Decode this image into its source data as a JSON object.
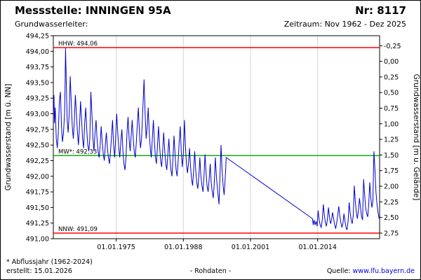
{
  "header": {
    "station": "Messstelle: INNINGEN 95A",
    "number": "Nr: 8117",
    "aquifer_label": "Grundwasserleiter:",
    "period": "Zeitraum: Nov 1962 - Dez 2025"
  },
  "footer": {
    "note": "* Abflussjahr (1962-2024)",
    "created": "erstellt: 15.01.2026",
    "center": "- Rohdaten -",
    "source_label": "Quelle:",
    "source_url": "www.lfu.bayern.de"
  },
  "chart_data": {
    "type": "line",
    "ylabel_left": "Grundwasserstand [m ü. NN]",
    "ylabel_right": "Grundwasserstand [m u. Gelände]",
    "xlim": [
      1962.83,
      2026.0
    ],
    "ylim": [
      491.0,
      494.25
    ],
    "y_tick_step": 0.25,
    "grid": "vertical-only",
    "right_axis": {
      "ground_level_m_nn": 493.84,
      "tick_min": -0.25,
      "tick_max": 2.75,
      "tick_step": 0.25
    },
    "x_ticks": [
      {
        "x": 1975.0,
        "label": "01.01.1975"
      },
      {
        "x": 1988.0,
        "label": "01.01.1988"
      },
      {
        "x": 2001.0,
        "label": "01.01.2001"
      },
      {
        "x": 2014.0,
        "label": "01.01.2014"
      }
    ],
    "reference_lines": [
      {
        "name": "HHW",
        "value": 494.06,
        "label": "HHW: 494,06",
        "color": "#ff0000"
      },
      {
        "name": "MW",
        "value": 492.33,
        "label": "MW*: 492,33",
        "color": "#00aa00"
      },
      {
        "name": "NNW",
        "value": 491.09,
        "label": "NNW: 491,09",
        "color": "#ff0000"
      }
    ],
    "series": [
      {
        "name": "Grundwasserstand Rohdaten",
        "color": "#0000cc",
        "points": [
          [
            1962.85,
            493.05
          ],
          [
            1962.95,
            493.3
          ],
          [
            1963.05,
            492.85
          ],
          [
            1963.2,
            493.1
          ],
          [
            1963.4,
            492.6
          ],
          [
            1963.6,
            492.45
          ],
          [
            1963.8,
            492.7
          ],
          [
            1964.0,
            493.2
          ],
          [
            1964.2,
            493.35
          ],
          [
            1964.4,
            492.8
          ],
          [
            1964.6,
            492.55
          ],
          [
            1964.8,
            492.7
          ],
          [
            1965.0,
            493.0
          ],
          [
            1965.1,
            493.4
          ],
          [
            1965.2,
            494.05
          ],
          [
            1965.35,
            493.5
          ],
          [
            1965.5,
            492.9
          ],
          [
            1965.7,
            492.7
          ],
          [
            1965.9,
            493.0
          ],
          [
            1966.1,
            493.6
          ],
          [
            1966.3,
            493.2
          ],
          [
            1966.5,
            492.8
          ],
          [
            1966.7,
            492.6
          ],
          [
            1966.9,
            492.9
          ],
          [
            1967.1,
            493.3
          ],
          [
            1967.3,
            493.0
          ],
          [
            1967.5,
            492.7
          ],
          [
            1967.7,
            492.5
          ],
          [
            1967.9,
            492.8
          ],
          [
            1968.1,
            493.2
          ],
          [
            1968.3,
            492.9
          ],
          [
            1968.5,
            492.6
          ],
          [
            1968.7,
            492.45
          ],
          [
            1968.9,
            492.85
          ],
          [
            1969.1,
            493.1
          ],
          [
            1969.3,
            492.75
          ],
          [
            1969.5,
            492.5
          ],
          [
            1969.7,
            492.4
          ],
          [
            1969.9,
            492.6
          ],
          [
            1970.1,
            493.35
          ],
          [
            1970.3,
            493.0
          ],
          [
            1970.5,
            492.6
          ],
          [
            1970.7,
            492.4
          ],
          [
            1970.9,
            492.7
          ],
          [
            1971.1,
            492.9
          ],
          [
            1971.3,
            492.6
          ],
          [
            1971.5,
            492.4
          ],
          [
            1971.7,
            492.3
          ],
          [
            1971.9,
            492.5
          ],
          [
            1972.1,
            492.8
          ],
          [
            1972.3,
            492.55
          ],
          [
            1972.5,
            492.35
          ],
          [
            1972.7,
            492.25
          ],
          [
            1972.9,
            492.5
          ],
          [
            1973.1,
            492.7
          ],
          [
            1973.3,
            492.45
          ],
          [
            1973.5,
            492.3
          ],
          [
            1973.7,
            492.2
          ],
          [
            1973.9,
            492.4
          ],
          [
            1974.1,
            492.65
          ],
          [
            1974.3,
            492.9
          ],
          [
            1974.5,
            492.5
          ],
          [
            1974.7,
            492.3
          ],
          [
            1974.9,
            492.6
          ],
          [
            1975.1,
            493.0
          ],
          [
            1975.3,
            492.7
          ],
          [
            1975.5,
            492.45
          ],
          [
            1975.7,
            492.3
          ],
          [
            1975.9,
            492.55
          ],
          [
            1976.1,
            492.75
          ],
          [
            1976.3,
            492.4
          ],
          [
            1976.5,
            492.2
          ],
          [
            1976.7,
            492.1
          ],
          [
            1976.9,
            492.3
          ],
          [
            1977.1,
            492.7
          ],
          [
            1977.3,
            492.95
          ],
          [
            1977.5,
            492.6
          ],
          [
            1977.7,
            492.4
          ],
          [
            1977.9,
            492.65
          ],
          [
            1978.1,
            492.9
          ],
          [
            1978.3,
            492.6
          ],
          [
            1978.5,
            492.4
          ],
          [
            1978.7,
            492.3
          ],
          [
            1978.9,
            492.55
          ],
          [
            1979.1,
            492.85
          ],
          [
            1979.3,
            493.1
          ],
          [
            1979.5,
            492.7
          ],
          [
            1979.7,
            492.45
          ],
          [
            1979.9,
            492.6
          ],
          [
            1980.1,
            492.95
          ],
          [
            1980.4,
            493.55
          ],
          [
            1980.6,
            493.0
          ],
          [
            1980.8,
            492.6
          ],
          [
            1981.0,
            492.8
          ],
          [
            1981.2,
            493.1
          ],
          [
            1981.4,
            492.7
          ],
          [
            1981.6,
            492.45
          ],
          [
            1981.8,
            492.3
          ],
          [
            1982.0,
            492.6
          ],
          [
            1982.2,
            492.9
          ],
          [
            1982.4,
            492.55
          ],
          [
            1982.6,
            492.3
          ],
          [
            1982.8,
            492.2
          ],
          [
            1983.0,
            492.5
          ],
          [
            1983.2,
            492.8
          ],
          [
            1983.4,
            492.5
          ],
          [
            1983.6,
            492.25
          ],
          [
            1983.8,
            492.15
          ],
          [
            1984.0,
            492.4
          ],
          [
            1984.2,
            492.7
          ],
          [
            1984.4,
            492.4
          ],
          [
            1984.6,
            492.2
          ],
          [
            1984.8,
            492.1
          ],
          [
            1985.0,
            492.35
          ],
          [
            1985.2,
            492.6
          ],
          [
            1985.4,
            492.3
          ],
          [
            1985.6,
            492.1
          ],
          [
            1985.8,
            492.0
          ],
          [
            1986.0,
            492.3
          ],
          [
            1986.2,
            492.65
          ],
          [
            1986.4,
            492.35
          ],
          [
            1986.6,
            492.1
          ],
          [
            1986.8,
            492.0
          ],
          [
            1987.0,
            492.25
          ],
          [
            1987.2,
            492.55
          ],
          [
            1987.4,
            492.8
          ],
          [
            1987.6,
            492.4
          ],
          [
            1987.8,
            492.15
          ],
          [
            1988.0,
            492.35
          ],
          [
            1988.2,
            492.9
          ],
          [
            1988.4,
            492.5
          ],
          [
            1988.6,
            492.2
          ],
          [
            1988.8,
            492.05
          ],
          [
            1989.0,
            492.2
          ],
          [
            1989.2,
            492.45
          ],
          [
            1989.4,
            492.15
          ],
          [
            1989.6,
            491.95
          ],
          [
            1989.8,
            491.85
          ],
          [
            1990.0,
            492.1
          ],
          [
            1990.2,
            492.4
          ],
          [
            1990.4,
            492.1
          ],
          [
            1990.6,
            491.9
          ],
          [
            1990.8,
            491.8
          ],
          [
            1991.0,
            492.0
          ],
          [
            1991.2,
            492.3
          ],
          [
            1991.4,
            492.0
          ],
          [
            1991.6,
            491.85
          ],
          [
            1991.8,
            491.75
          ],
          [
            1992.0,
            492.0
          ],
          [
            1992.2,
            492.35
          ],
          [
            1992.4,
            492.05
          ],
          [
            1992.6,
            491.85
          ],
          [
            1992.8,
            491.75
          ],
          [
            1993.0,
            491.95
          ],
          [
            1993.2,
            492.2
          ],
          [
            1993.4,
            491.9
          ],
          [
            1993.6,
            491.75
          ],
          [
            1993.8,
            491.65
          ],
          [
            1994.0,
            491.9
          ],
          [
            1994.2,
            492.3
          ],
          [
            1994.4,
            492.0
          ],
          [
            1994.6,
            491.8
          ],
          [
            1994.9,
            491.55
          ],
          [
            1995.1,
            492.0
          ],
          [
            1995.3,
            492.5
          ],
          [
            1995.5,
            492.1
          ],
          [
            1995.7,
            491.85
          ],
          [
            1995.9,
            491.7
          ],
          [
            1996.1,
            491.95
          ],
          [
            1996.3,
            492.3
          ],
          [
            2013.0,
            491.32
          ],
          [
            2013.15,
            491.22
          ],
          [
            2013.3,
            491.3
          ],
          [
            2013.5,
            491.22
          ],
          [
            2013.7,
            491.28
          ],
          [
            2013.9,
            491.2
          ],
          [
            2014.1,
            491.45
          ],
          [
            2014.3,
            491.3
          ],
          [
            2014.5,
            491.22
          ],
          [
            2014.7,
            491.18
          ],
          [
            2014.9,
            491.3
          ],
          [
            2015.1,
            491.55
          ],
          [
            2015.3,
            491.38
          ],
          [
            2015.5,
            491.26
          ],
          [
            2015.7,
            491.2
          ],
          [
            2015.9,
            491.32
          ],
          [
            2016.1,
            491.5
          ],
          [
            2016.3,
            491.34
          ],
          [
            2016.5,
            491.24
          ],
          [
            2016.7,
            491.3
          ],
          [
            2016.9,
            491.42
          ],
          [
            2017.1,
            491.32
          ],
          [
            2017.3,
            491.22
          ],
          [
            2017.5,
            491.16
          ],
          [
            2017.7,
            491.26
          ],
          [
            2017.9,
            491.38
          ],
          [
            2018.1,
            491.52
          ],
          [
            2018.3,
            491.36
          ],
          [
            2018.5,
            491.26
          ],
          [
            2018.7,
            491.18
          ],
          [
            2018.9,
            491.24
          ],
          [
            2019.1,
            491.4
          ],
          [
            2019.3,
            491.28
          ],
          [
            2019.5,
            491.18
          ],
          [
            2019.7,
            491.14
          ],
          [
            2019.9,
            491.28
          ],
          [
            2020.1,
            491.58
          ],
          [
            2020.3,
            491.42
          ],
          [
            2020.5,
            491.3
          ],
          [
            2020.7,
            491.24
          ],
          [
            2020.9,
            491.38
          ],
          [
            2021.1,
            491.85
          ],
          [
            2021.3,
            491.6
          ],
          [
            2021.5,
            491.42
          ],
          [
            2021.7,
            491.32
          ],
          [
            2021.9,
            491.45
          ],
          [
            2022.1,
            491.65
          ],
          [
            2022.3,
            491.5
          ],
          [
            2022.5,
            491.36
          ],
          [
            2022.7,
            491.3
          ],
          [
            2022.9,
            491.95
          ],
          [
            2023.1,
            491.7
          ],
          [
            2023.3,
            491.5
          ],
          [
            2023.5,
            491.4
          ],
          [
            2023.7,
            491.35
          ],
          [
            2023.9,
            491.55
          ],
          [
            2024.1,
            491.9
          ],
          [
            2024.3,
            491.65
          ],
          [
            2024.5,
            491.5
          ],
          [
            2024.7,
            491.6
          ],
          [
            2024.9,
            492.4
          ],
          [
            2025.1,
            492.1
          ],
          [
            2025.3,
            491.75
          ],
          [
            2025.5,
            491.55
          ],
          [
            2025.7,
            491.42
          ],
          [
            2025.92,
            491.32
          ]
        ]
      }
    ],
    "data_gap": {
      "from": 1996.3,
      "to": 2013.0
    }
  }
}
